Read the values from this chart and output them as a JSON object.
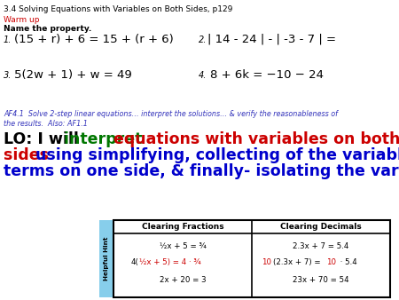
{
  "title_line": "3.4 Solving Equations with Variables on Both Sides, p129",
  "warm_up_label": "Warm up",
  "name_property": "Name the property.",
  "prob1_num": "1.",
  "prob1": "(15 + r) + 6 = 15 + (r + 6)",
  "prob2_num": "2.",
  "prob2": " 14 - 24  -  -3 - 7  =",
  "prob3_num": "3.",
  "prob3": "5(2w + 1) + w = 49",
  "prob4_num": "4.",
  "prob4": "8 + 6k = −10 − 24",
  "af_line1": "AF4.1  Solve 2-step linear equations… interpret the solutions… & verify the reasonableness of",
  "af_line2": "the results.  Also: AF1.1",
  "hint_label": "Helpful Hint",
  "col1_header": "Clearing Fractions",
  "col2_header": "Clearing Decimals",
  "bg_color": "#ffffff",
  "text_color": "#000000",
  "red_color": "#cc0000",
  "green_color": "#007700",
  "blue_color": "#0000cc",
  "af_color": "#3333bb",
  "hint_bg": "#87ceeb"
}
